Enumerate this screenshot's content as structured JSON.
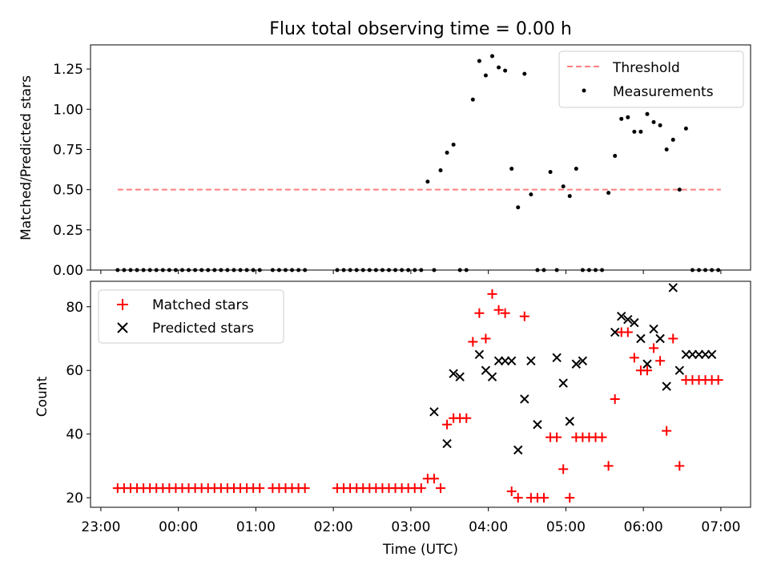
{
  "chart_data": [
    {
      "type": "scatter",
      "title": "Flux total observing time = 0.00 h",
      "xlabel": "",
      "ylabel": "Matched/Predicted stars",
      "xlim": [
        "22:52",
        "07:23"
      ],
      "ylim": [
        0,
        1.4
      ],
      "yticks": [
        "0.00",
        "0.25",
        "0.50",
        "0.75",
        "1.00",
        "1.25"
      ],
      "legend_position": "top-right",
      "series": [
        {
          "name": "Threshold",
          "style": "dashed-line",
          "color": "#ff7f7f",
          "x": [
            "23:13",
            "07:00"
          ],
          "y": [
            0.5,
            0.5
          ]
        },
        {
          "name": "Measurements",
          "style": "dot",
          "color": "#000000",
          "x": [
            "23:13",
            "23:18",
            "23:23",
            "23:28",
            "23:33",
            "23:38",
            "23:43",
            "23:48",
            "23:53",
            "23:58",
            "00:03",
            "00:08",
            "00:13",
            "00:18",
            "00:23",
            "00:28",
            "00:33",
            "00:38",
            "00:43",
            "00:48",
            "00:53",
            "00:58",
            "01:03",
            "01:13",
            "01:18",
            "01:23",
            "01:28",
            "01:33",
            "01:38",
            "02:03",
            "02:08",
            "02:13",
            "02:18",
            "02:23",
            "02:28",
            "02:33",
            "02:38",
            "02:43",
            "02:48",
            "02:53",
            "02:58",
            "03:03",
            "03:08",
            "03:13",
            "03:18",
            "03:23",
            "03:28",
            "03:33",
            "03:38",
            "03:43",
            "03:48",
            "03:53",
            "03:58",
            "04:03",
            "04:08",
            "04:13",
            "04:18",
            "04:23",
            "04:28",
            "04:33",
            "04:38",
            "04:43",
            "04:48",
            "04:53",
            "04:58",
            "05:03",
            "05:08",
            "05:13",
            "05:18",
            "05:23",
            "05:28",
            "05:33",
            "05:38",
            "05:43",
            "05:48",
            "05:53",
            "05:58",
            "06:03",
            "06:08",
            "06:13",
            "06:18",
            "06:23",
            "06:28",
            "06:33",
            "06:38",
            "06:43",
            "06:48",
            "06:53",
            "06:58"
          ],
          "y": [
            0,
            0,
            0,
            0,
            0,
            0,
            0,
            0,
            0,
            0,
            0,
            0,
            0,
            0,
            0,
            0,
            0,
            0,
            0,
            0,
            0,
            0,
            0,
            0,
            0,
            0,
            0,
            0,
            0,
            0,
            0,
            0,
            0,
            0,
            0,
            0,
            0,
            0,
            0,
            0,
            0,
            0,
            0,
            0.55,
            0,
            0.62,
            0.73,
            0.78,
            0,
            0,
            1.06,
            1.3,
            1.21,
            1.33,
            1.26,
            1.24,
            0.63,
            0.39,
            1.22,
            0.47,
            0,
            0,
            0.61,
            0,
            0.52,
            0.46,
            0.63,
            0,
            0,
            0,
            0,
            0.48,
            0.71,
            0.94,
            0.95,
            0.86,
            0.86,
            0.97,
            0.92,
            0.9,
            0.75,
            0.81,
            0.5,
            0.88,
            0,
            0,
            0,
            0,
            0
          ]
        }
      ]
    },
    {
      "type": "scatter",
      "title": "",
      "xlabel": "Time (UTC)",
      "ylabel": "Count",
      "xlim": [
        "22:52",
        "07:23"
      ],
      "ylim": [
        17,
        88
      ],
      "xticks": [
        "23:00",
        "00:00",
        "01:00",
        "02:00",
        "03:00",
        "04:00",
        "05:00",
        "06:00",
        "07:00"
      ],
      "yticks": [
        "20",
        "40",
        "60",
        "80"
      ],
      "legend_position": "top-left",
      "series": [
        {
          "name": "Matched stars",
          "marker": "plus",
          "color": "#ff0000",
          "x": [
            "23:13",
            "23:18",
            "23:23",
            "23:28",
            "23:33",
            "23:38",
            "23:43",
            "23:48",
            "23:53",
            "23:58",
            "00:03",
            "00:08",
            "00:13",
            "00:18",
            "00:23",
            "00:28",
            "00:33",
            "00:38",
            "00:43",
            "00:48",
            "00:53",
            "00:58",
            "01:03",
            "01:13",
            "01:18",
            "01:23",
            "01:28",
            "01:33",
            "01:38",
            "02:03",
            "02:08",
            "02:13",
            "02:18",
            "02:23",
            "02:28",
            "02:33",
            "02:38",
            "02:43",
            "02:48",
            "02:53",
            "02:58",
            "03:03",
            "03:08",
            "03:13",
            "03:18",
            "03:23",
            "03:28",
            "03:33",
            "03:38",
            "03:43",
            "03:48",
            "03:53",
            "03:58",
            "04:03",
            "04:08",
            "04:13",
            "04:18",
            "04:23",
            "04:28",
            "04:33",
            "04:38",
            "04:43",
            "04:48",
            "04:53",
            "04:58",
            "05:03",
            "05:08",
            "05:13",
            "05:18",
            "05:23",
            "05:28",
            "05:33",
            "05:38",
            "05:43",
            "05:48",
            "05:53",
            "05:58",
            "06:03",
            "06:08",
            "06:13",
            "06:18",
            "06:23",
            "06:28",
            "06:33",
            "06:38",
            "06:43",
            "06:48",
            "06:53",
            "06:58"
          ],
          "y": [
            23,
            23,
            23,
            23,
            23,
            23,
            23,
            23,
            23,
            23,
            23,
            23,
            23,
            23,
            23,
            23,
            23,
            23,
            23,
            23,
            23,
            23,
            23,
            23,
            23,
            23,
            23,
            23,
            23,
            23,
            23,
            23,
            23,
            23,
            23,
            23,
            23,
            23,
            23,
            23,
            23,
            23,
            23,
            26,
            26,
            23,
            43,
            45,
            45,
            45,
            69,
            78,
            70,
            84,
            79,
            78,
            22,
            20,
            77,
            20,
            20,
            20,
            39,
            39,
            29,
            20,
            39,
            39,
            39,
            39,
            39,
            30,
            51,
            72,
            72,
            64,
            60,
            60,
            67,
            63,
            41,
            70,
            30,
            57,
            57,
            57,
            57,
            57,
            57
          ]
        },
        {
          "name": "Predicted stars",
          "marker": "x",
          "color": "#000000",
          "x": [
            "03:18",
            "03:28",
            "03:33",
            "03:38",
            "03:53",
            "03:58",
            "04:03",
            "04:08",
            "04:13",
            "04:18",
            "04:23",
            "04:28",
            "04:33",
            "04:38",
            "04:53",
            "04:58",
            "05:03",
            "05:08",
            "05:13",
            "05:38",
            "05:43",
            "05:48",
            "05:53",
            "05:58",
            "06:03",
            "06:08",
            "06:13",
            "06:18",
            "06:23",
            "06:28",
            "06:33",
            "06:38",
            "06:43",
            "06:48",
            "06:53"
          ],
          "y": [
            47,
            37,
            59,
            58,
            65,
            60,
            58,
            63,
            63,
            63,
            35,
            51,
            63,
            43,
            64,
            56,
            44,
            62,
            63,
            72,
            77,
            76,
            75,
            70,
            62,
            73,
            70,
            55,
            86,
            60,
            65,
            65,
            65,
            65,
            65
          ]
        }
      ]
    }
  ]
}
